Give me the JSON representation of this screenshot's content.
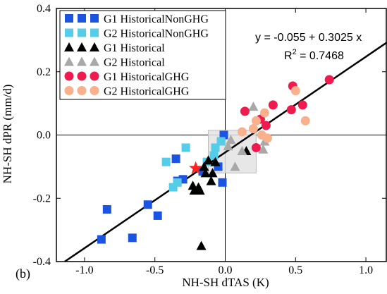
{
  "chart_data": {
    "type": "scatter",
    "panel_label": "(b)",
    "xlabel": "NH-SH dTAS (K)",
    "ylabel": "NH-SH dPR (mm/d)",
    "xlim": [
      -1.2,
      1.15
    ],
    "ylim": [
      -0.4,
      0.4
    ],
    "xticks": [
      -1.0,
      -0.5,
      0.0,
      0.5,
      1.0
    ],
    "xtick_labels": [
      "-1.0",
      "-0.5",
      "0.0",
      "0.5",
      "1.0"
    ],
    "yticks": [
      -0.4,
      -0.2,
      0.0,
      0.2,
      0.4
    ],
    "ytick_labels": [
      "-0.4",
      "-0.2",
      "0.0",
      "0.2",
      "0.4"
    ],
    "grid": false,
    "zero_lines": true,
    "legend_position": "top-left",
    "regression": {
      "intercept": -0.055,
      "slope": 0.3025,
      "equation": "y = -0.055 + 0.3025 x",
      "r2_prefix": "R",
      "r2_superscript": "2",
      "r2_value": " = 0.7468"
    },
    "shaded_box": {
      "x": [
        -0.12,
        0.22
      ],
      "y": [
        -0.12,
        0.015
      ],
      "color": "#e3e3e3"
    },
    "star": {
      "x": -0.21,
      "y": -0.105,
      "color": "#ff2020"
    },
    "series": [
      {
        "name": "G1 HistoricalNonGHG",
        "marker": "square",
        "color": "#1a54e0",
        "points": [
          [
            -0.88,
            -0.33
          ],
          [
            -0.84,
            -0.235
          ],
          [
            -0.66,
            -0.325
          ],
          [
            -0.55,
            -0.22
          ],
          [
            -0.48,
            -0.255
          ],
          [
            -0.35,
            -0.075
          ],
          [
            -0.34,
            -0.145
          ],
          [
            -0.3,
            -0.14
          ],
          [
            -0.16,
            -0.115
          ],
          [
            -0.05,
            -0.1
          ],
          [
            -0.02,
            -0.15
          ],
          [
            -0.01,
            0.0
          ]
        ]
      },
      {
        "name": "G2 HistoricalNonGHG",
        "marker": "square",
        "color": "#55cde8",
        "points": [
          [
            -0.42,
            -0.085
          ],
          [
            -0.37,
            -0.165
          ],
          [
            -0.34,
            -0.15
          ],
          [
            -0.28,
            -0.04
          ],
          [
            -0.13,
            -0.085
          ],
          [
            -0.08,
            -0.065
          ],
          [
            -0.07,
            -0.04
          ],
          [
            -0.03,
            -0.02
          ]
        ]
      },
      {
        "name": "G1 Historical",
        "marker": "triangle",
        "color": "#000000",
        "points": [
          [
            -0.23,
            -0.16
          ],
          [
            -0.22,
            -0.175
          ],
          [
            -0.19,
            -0.165
          ],
          [
            -0.18,
            -0.175
          ],
          [
            -0.17,
            -0.35
          ],
          [
            -0.15,
            -0.1
          ],
          [
            -0.14,
            -0.12
          ],
          [
            -0.12,
            -0.08
          ],
          [
            -0.1,
            -0.145
          ],
          [
            -0.09,
            -0.12
          ],
          [
            -0.07,
            -0.085
          ],
          [
            0.15,
            -0.05
          ]
        ]
      },
      {
        "name": "G2 Historical",
        "marker": "triangle",
        "color": "#a8a8a8",
        "points": [
          [
            0.02,
            -0.035
          ],
          [
            0.04,
            -0.015
          ],
          [
            0.07,
            -0.1
          ],
          [
            0.12,
            -0.05
          ],
          [
            0.2,
            0.09
          ],
          [
            0.27,
            -0.045
          ],
          [
            0.28,
            -0.02
          ]
        ]
      },
      {
        "name": "G1 HistoricalGHG",
        "marker": "circle",
        "color": "#ef1a4e",
        "points": [
          [
            0.14,
            0.075
          ],
          [
            0.22,
            -0.04
          ],
          [
            0.25,
            0.05
          ],
          [
            0.29,
            0.03
          ],
          [
            0.34,
            0.095
          ],
          [
            0.47,
            0.08
          ],
          [
            0.48,
            0.155
          ],
          [
            0.55,
            0.095
          ],
          [
            0.74,
            0.175
          ]
        ]
      },
      {
        "name": "G2 HistoricalGHG",
        "marker": "circle",
        "color": "#f8b08d",
        "points": [
          [
            0.12,
            0.01
          ],
          [
            0.2,
            0.02
          ],
          [
            0.22,
            0.045
          ],
          [
            0.26,
            0.0
          ],
          [
            0.28,
            0.07
          ],
          [
            0.3,
            -0.01
          ],
          [
            0.5,
            0.14
          ],
          [
            0.57,
            0.045
          ]
        ]
      }
    ]
  }
}
